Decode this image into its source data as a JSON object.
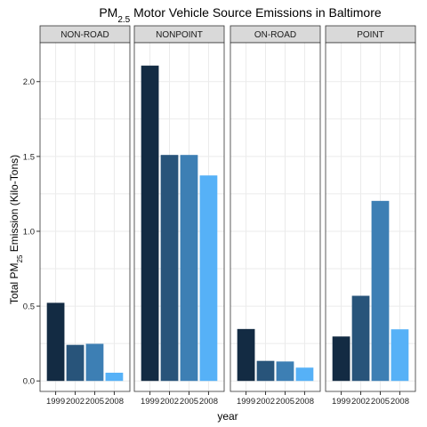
{
  "chart_data": {
    "type": "bar",
    "title_main": "PM",
    "title_sub": "2.5",
    "title_rest": " Motor Vehicle Source Emissions in Baltimore",
    "xlabel": "year",
    "ylabel_main": "Total PM",
    "ylabel_sub": "25",
    "ylabel_rest": " Emission (Kilo-Tons)",
    "ylim": [
      -0.07,
      2.26
    ],
    "y_ticks": [
      "0.0",
      "0.5",
      "1.0",
      "1.5",
      "2.0"
    ],
    "y_tick_values": [
      0,
      0.5,
      1.0,
      1.5,
      2.0
    ],
    "categories": [
      "1999",
      "2002",
      "2005",
      "2008"
    ],
    "bar_colors": [
      "#132b43",
      "#28547a",
      "#3d7fb4",
      "#56b1f7"
    ],
    "panel_background": "#ffffff",
    "grid_color": "#ebebeb",
    "strip_fill": "#d9d9d9",
    "panels": [
      {
        "name": "NON-ROAD",
        "values": [
          0.522,
          0.241,
          0.248,
          0.055
        ]
      },
      {
        "name": "NONPOINT",
        "values": [
          2.107,
          1.51,
          1.51,
          1.373
        ]
      },
      {
        "name": "ON-ROAD",
        "values": [
          0.347,
          0.134,
          0.13,
          0.089
        ]
      },
      {
        "name": "POINT",
        "values": [
          0.297,
          0.569,
          1.203,
          0.345
        ]
      }
    ],
    "grid": true,
    "legend": "none"
  }
}
